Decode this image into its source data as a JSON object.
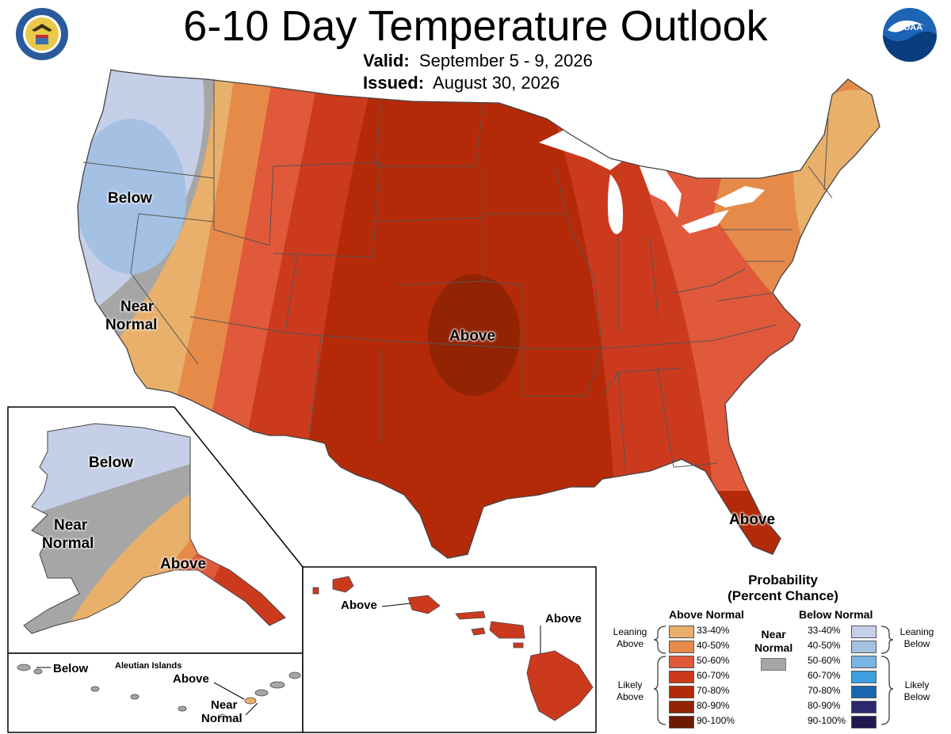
{
  "header": {
    "title": "6-10 Day Temperature Outlook",
    "valid_label": "Valid:",
    "valid_value": "September 5 - 9, 2026",
    "issued_label": "Issued:",
    "issued_value": "August 30, 2026"
  },
  "logos": {
    "left": "doc-seal",
    "right": "noaa-logo",
    "noaa_text": "NOAA"
  },
  "map_labels": {
    "conus_below": "Below",
    "conus_near_1": "Near",
    "conus_near_2": "Normal",
    "conus_above": "Above",
    "florida_above": "Above",
    "alaska_below": "Below",
    "alaska_near_1": "Near",
    "alaska_near_2": "Normal",
    "alaska_above": "Above",
    "aleutian_title": "Aleutian Islands",
    "aleutian_below": "Below",
    "aleutian_above": "Above",
    "aleutian_near_1": "Near",
    "aleutian_near_2": "Normal",
    "hawaii_above_1": "Above",
    "hawaii_above_2": "Above"
  },
  "legend": {
    "title_1": "Probability",
    "title_2": "(Percent Chance)",
    "above_head": "Above Normal",
    "below_head": "Below Normal",
    "near_1": "Near",
    "near_2": "Normal",
    "leaning_above_1": "Leaning",
    "leaning_above_2": "Above",
    "likely_above_1": "Likely",
    "likely_above_2": "Above",
    "leaning_below_1": "Leaning",
    "leaning_below_2": "Below",
    "likely_below_1": "Likely",
    "likely_below_2": "Below",
    "above_bins": [
      {
        "label": "33-40%",
        "color": "#e8b06a"
      },
      {
        "label": "40-50%",
        "color": "#e68a4a"
      },
      {
        "label": "50-60%",
        "color": "#e0593a"
      },
      {
        "label": "60-70%",
        "color": "#cc3a1e"
      },
      {
        "label": "70-80%",
        "color": "#b42a08"
      },
      {
        "label": "80-90%",
        "color": "#922404"
      },
      {
        "label": "90-100%",
        "color": "#6e1a02"
      }
    ],
    "below_bins": [
      {
        "label": "33-40%",
        "color": "#c5cfe8"
      },
      {
        "label": "40-50%",
        "color": "#a4c1e4"
      },
      {
        "label": "50-60%",
        "color": "#7ab4e2"
      },
      {
        "label": "60-70%",
        "color": "#3d9fdb"
      },
      {
        "label": "70-80%",
        "color": "#1a66ac"
      },
      {
        "label": "80-90%",
        "color": "#2c2870"
      },
      {
        "label": "90-100%",
        "color": "#22184e"
      }
    ],
    "near_color": "#a6a6a6"
  }
}
